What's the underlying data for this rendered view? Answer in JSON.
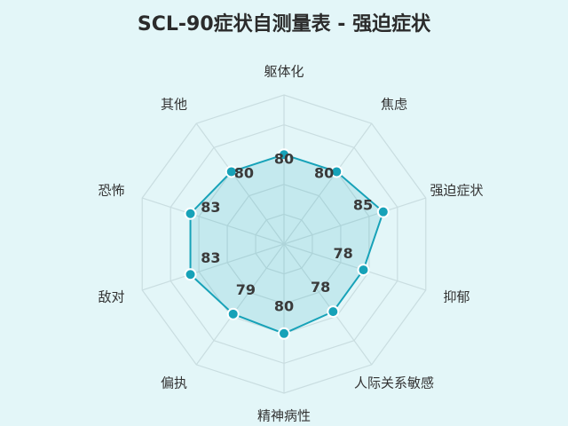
{
  "chart_data": {
    "type": "radar",
    "title": "SCL-90症状自测量表 - 强迫症状",
    "categories": [
      "躯体化",
      "焦虑",
      "强迫症状",
      "抑郁",
      "人际关系敏感",
      "精神病性",
      "偏执",
      "敌对",
      "恐怖",
      "其他"
    ],
    "series": [
      {
        "values": [
          80,
          80,
          85,
          78,
          78,
          80,
          79,
          83,
          83,
          80
        ]
      }
    ],
    "value_labels": [
      "80",
      "80",
      "85",
      "78",
      "78",
      "80",
      "79",
      "83",
      "83",
      "80"
    ],
    "rlim": [
      50,
      100
    ],
    "grid": true,
    "line_color": "#17a2b8",
    "fill_color": "#17a2b8",
    "grid_color": "#c9dde0"
  }
}
